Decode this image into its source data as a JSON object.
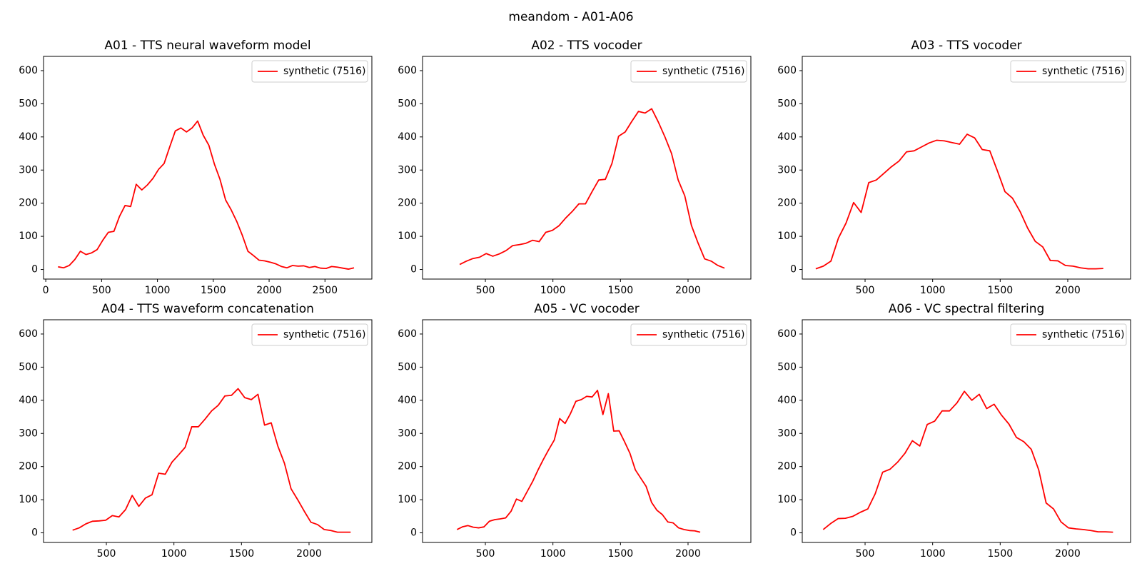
{
  "title": "meandom - A01-A06",
  "chart_data": [
    {
      "type": "line",
      "title": "A01 - TTS neural waveform model",
      "x": [
        110,
        160,
        210,
        260,
        310,
        360,
        410,
        460,
        510,
        560,
        610,
        660,
        710,
        760,
        810,
        860,
        910,
        960,
        1010,
        1060,
        1110,
        1160,
        1210,
        1260,
        1310,
        1360,
        1410,
        1460,
        1510,
        1560,
        1610,
        1660,
        1710,
        1760,
        1810,
        1860,
        1910,
        1960,
        2010,
        2060,
        2110,
        2160,
        2210,
        2260,
        2310,
        2360,
        2410,
        2460,
        2510,
        2560,
        2610,
        2660,
        2710,
        2760
      ],
      "series": [
        {
          "name": "synthetic (7516)",
          "color": "#ff0000",
          "values": [
            8,
            5,
            12,
            30,
            55,
            45,
            50,
            60,
            88,
            112,
            115,
            160,
            193,
            190,
            257,
            240,
            255,
            275,
            302,
            320,
            370,
            418,
            427,
            415,
            427,
            448,
            405,
            375,
            318,
            272,
            210,
            180,
            145,
            103,
            55,
            42,
            28,
            26,
            22,
            17,
            9,
            5,
            12,
            10,
            11,
            6,
            9,
            4,
            3,
            9,
            7,
            4,
            1,
            5
          ]
        }
      ],
      "xlim": [
        -20,
        2920
      ],
      "xticks": [
        0,
        500,
        1000,
        1500,
        2000,
        2500
      ],
      "ylim": [
        -29,
        643
      ],
      "yticks": [
        0,
        100,
        200,
        300,
        400,
        500,
        600
      ],
      "legend": "upper right"
    },
    {
      "type": "line",
      "title": "A02 - TTS vocoder",
      "x": [
        310,
        359,
        408,
        457,
        506,
        555,
        604,
        653,
        702,
        751,
        800,
        849,
        898,
        947,
        996,
        1045,
        1094,
        1143,
        1192,
        1241,
        1290,
        1339,
        1388,
        1437,
        1486,
        1535,
        1584,
        1633,
        1682,
        1731,
        1780,
        1829,
        1878,
        1927,
        1976,
        2025,
        2074,
        2123,
        2172,
        2221,
        2270
      ],
      "series": [
        {
          "name": "synthetic (7516)",
          "color": "#ff0000",
          "values": [
            15,
            25,
            33,
            37,
            48,
            40,
            47,
            57,
            72,
            75,
            79,
            88,
            84,
            112,
            118,
            132,
            155,
            175,
            198,
            198,
            235,
            270,
            272,
            320,
            402,
            415,
            447,
            477,
            472,
            485,
            445,
            400,
            350,
            270,
            222,
            133,
            80,
            32,
            25,
            12,
            4
          ]
        }
      ],
      "xlim": [
        35,
        2465
      ],
      "xticks": [
        500,
        1000,
        1500,
        2000
      ],
      "ylim": [
        -29,
        643
      ],
      "yticks": [
        0,
        100,
        200,
        300,
        400,
        500,
        600
      ],
      "legend": "upper right"
    },
    {
      "type": "line",
      "title": "A03 - TTS vocoder",
      "x": [
        135,
        191,
        247,
        303,
        359,
        415,
        471,
        527,
        583,
        639,
        695,
        751,
        807,
        863,
        919,
        975,
        1031,
        1087,
        1143,
        1199,
        1255,
        1311,
        1367,
        1423,
        1479,
        1535,
        1591,
        1647,
        1703,
        1759,
        1815,
        1871,
        1927,
        1983,
        2039,
        2095,
        2151,
        2207,
        2263
      ],
      "series": [
        {
          "name": "synthetic (7516)",
          "color": "#ff0000",
          "values": [
            2,
            10,
            25,
            95,
            140,
            202,
            172,
            262,
            270,
            290,
            310,
            327,
            355,
            358,
            370,
            382,
            390,
            388,
            383,
            378,
            408,
            397,
            362,
            358,
            298,
            235,
            215,
            175,
            125,
            85,
            68,
            27,
            26,
            12,
            10,
            5,
            2,
            2,
            3
          ]
        }
      ],
      "xlim": [
        35,
        2465
      ],
      "xticks": [
        500,
        1000,
        1500,
        2000
      ],
      "ylim": [
        -29,
        643
      ],
      "yticks": [
        0,
        100,
        200,
        300,
        400,
        500,
        600
      ],
      "legend": "upper right"
    },
    {
      "type": "line",
      "title": "A04 - TTS waveform concatenation",
      "x": [
        250,
        299,
        348,
        397,
        446,
        495,
        544,
        593,
        642,
        691,
        740,
        789,
        838,
        887,
        936,
        985,
        1034,
        1083,
        1132,
        1181,
        1230,
        1279,
        1328,
        1377,
        1426,
        1475,
        1524,
        1573,
        1622,
        1671,
        1720,
        1769,
        1818,
        1867,
        1916,
        1965,
        2014,
        2063,
        2112,
        2161,
        2210,
        2259,
        2308
      ],
      "series": [
        {
          "name": "synthetic (7516)",
          "color": "#ff0000",
          "values": [
            8,
            15,
            27,
            35,
            36,
            38,
            52,
            48,
            70,
            113,
            80,
            105,
            115,
            180,
            177,
            213,
            235,
            258,
            320,
            320,
            343,
            368,
            385,
            413,
            415,
            435,
            408,
            402,
            418,
            325,
            332,
            262,
            210,
            133,
            100,
            65,
            32,
            25,
            10,
            7,
            2,
            2,
            2
          ]
        }
      ],
      "xlim": [
        35,
        2465
      ],
      "xticks": [
        500,
        1000,
        1500,
        2000
      ],
      "ylim": [
        -29,
        643
      ],
      "yticks": [
        0,
        100,
        200,
        300,
        400,
        500,
        600
      ],
      "legend": "upper right"
    },
    {
      "type": "line",
      "title": "A05 - VC vocoder",
      "x": [
        290,
        330,
        370,
        410,
        450,
        490,
        530,
        570,
        610,
        650,
        690,
        730,
        770,
        810,
        850,
        890,
        930,
        970,
        1010,
        1050,
        1090,
        1130,
        1170,
        1210,
        1250,
        1290,
        1330,
        1370,
        1410,
        1450,
        1490,
        1530,
        1570,
        1610,
        1650,
        1690,
        1730,
        1770,
        1810,
        1850,
        1890,
        1930,
        1970,
        2010,
        2050,
        2090
      ],
      "series": [
        {
          "name": "synthetic (7516)",
          "color": "#ff0000",
          "values": [
            10,
            18,
            22,
            17,
            15,
            18,
            35,
            40,
            42,
            45,
            65,
            102,
            95,
            125,
            155,
            190,
            222,
            252,
            280,
            345,
            330,
            360,
            397,
            402,
            412,
            410,
            430,
            357,
            420,
            307,
            308,
            275,
            240,
            190,
            165,
            140,
            92,
            68,
            55,
            33,
            30,
            15,
            10,
            7,
            6,
            2
          ]
        }
      ],
      "xlim": [
        35,
        2465
      ],
      "xticks": [
        500,
        1000,
        1500,
        2000
      ],
      "ylim": [
        -29,
        643
      ],
      "yticks": [
        0,
        100,
        200,
        300,
        400,
        500,
        600
      ],
      "legend": "upper right"
    },
    {
      "type": "line",
      "title": "A06 - VC spectral filtering",
      "x": [
        190,
        245,
        300,
        355,
        410,
        465,
        520,
        575,
        630,
        685,
        740,
        795,
        850,
        905,
        960,
        1015,
        1070,
        1125,
        1180,
        1235,
        1290,
        1345,
        1400,
        1455,
        1510,
        1565,
        1620,
        1675,
        1730,
        1785,
        1840,
        1895,
        1950,
        2005,
        2060,
        2115,
        2170,
        2225,
        2280,
        2335
      ],
      "series": [
        {
          "name": "synthetic (7516)",
          "color": "#ff0000",
          "values": [
            10,
            28,
            43,
            44,
            50,
            62,
            72,
            118,
            183,
            192,
            213,
            240,
            278,
            262,
            327,
            337,
            368,
            368,
            392,
            427,
            400,
            418,
            375,
            388,
            355,
            328,
            288,
            275,
            252,
            190,
            90,
            72,
            33,
            15,
            12,
            10,
            7,
            3,
            3,
            2
          ]
        }
      ],
      "xlim": [
        35,
        2465
      ],
      "xticks": [
        500,
        1000,
        1500,
        2000
      ],
      "ylim": [
        -29,
        643
      ],
      "yticks": [
        0,
        100,
        200,
        300,
        400,
        500,
        600
      ],
      "legend": "upper right"
    }
  ]
}
